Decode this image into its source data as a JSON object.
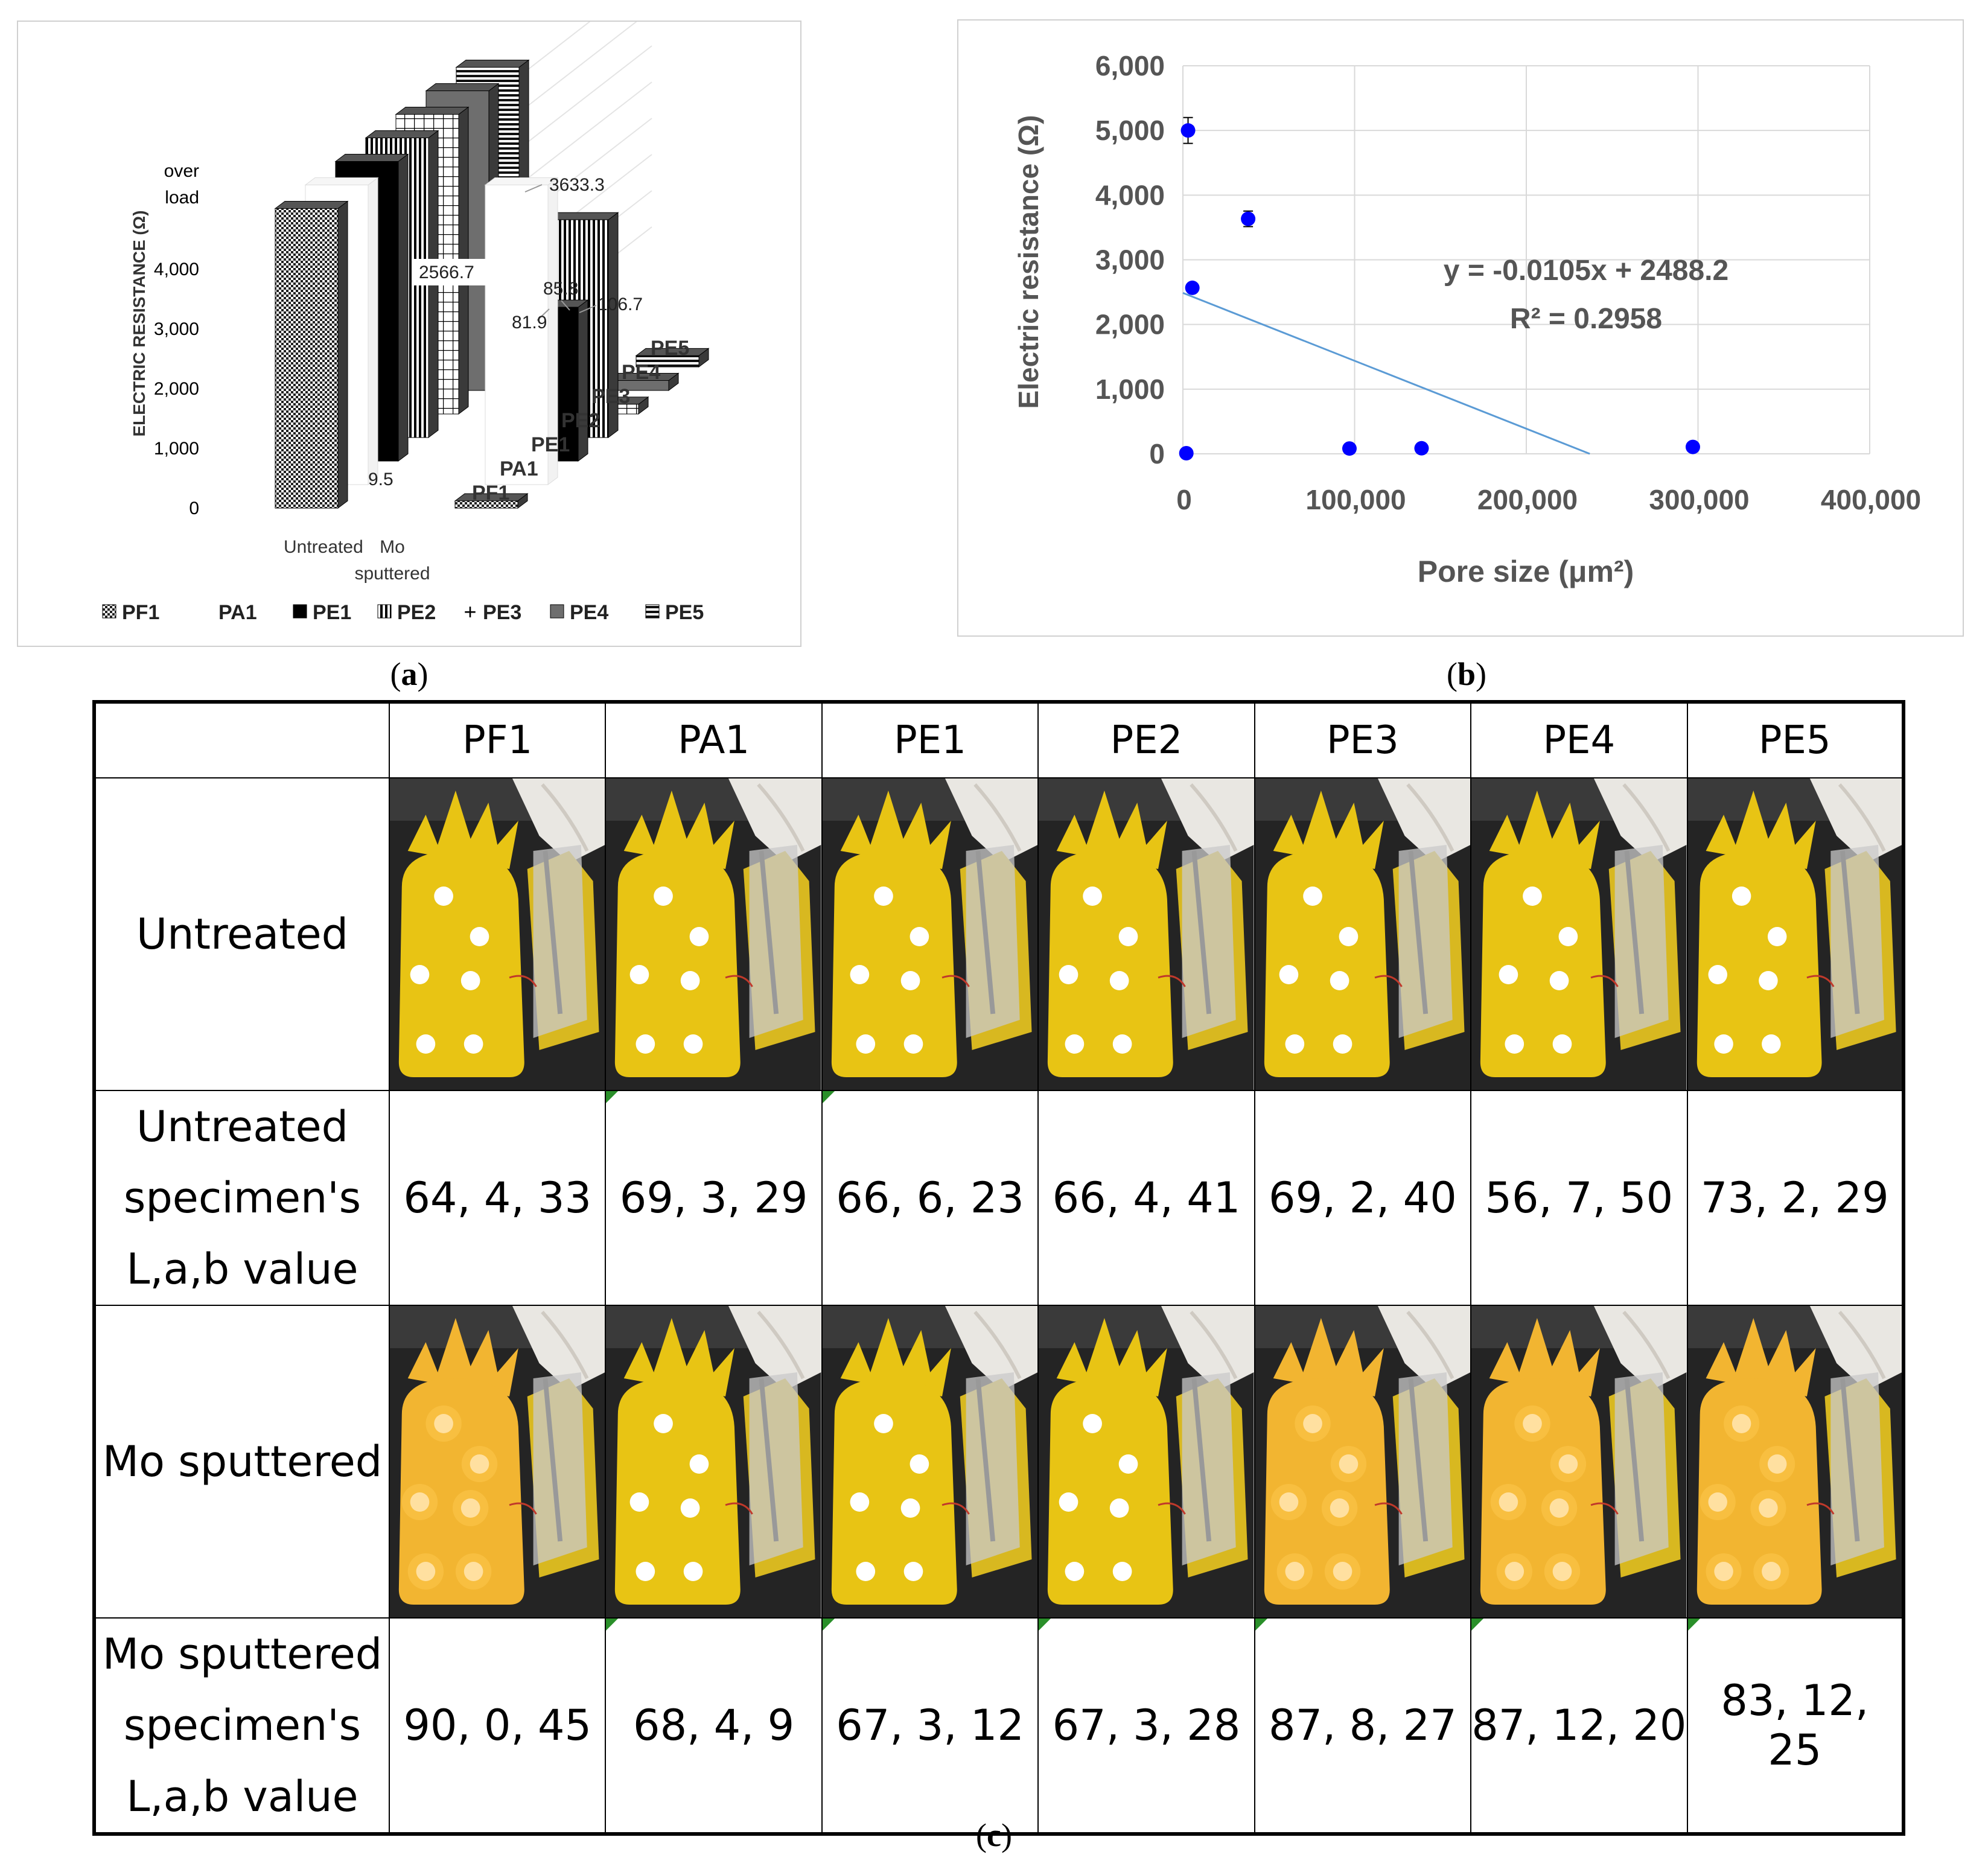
{
  "panel_labels": {
    "a": "(a)",
    "b": "(b)",
    "c": "(c)"
  },
  "chart_data": [
    {
      "type": "bar",
      "title": "",
      "ylabel": "ELECTRIC RESISTANCE (Ω)",
      "ylim": [
        0,
        6000
      ],
      "y_ticks": [
        "0",
        "1,000",
        "2,000",
        "3,000",
        "4,000"
      ],
      "overload_tick": "over load",
      "categories": [
        "Untreated",
        "Mo sputtered"
      ],
      "depth_labels": [
        "PF1",
        "PA1",
        "PE1",
        "PE2",
        "PE3",
        "PE4",
        "PE5"
      ],
      "legend": [
        "PF1",
        "PA1",
        "PE1",
        "PE2",
        "PE3",
        "PE4",
        "PE5"
      ],
      "series": [
        {
          "name": "PF1",
          "pattern": "dots",
          "values": [
            5000,
            9.5
          ]
        },
        {
          "name": "PA1",
          "pattern": "white",
          "values": [
            5000,
            5000
          ]
        },
        {
          "name": "PE1",
          "pattern": "black",
          "values": [
            5000,
            2566.7
          ]
        },
        {
          "name": "PE2",
          "pattern": "vlines",
          "values": [
            5000,
            3633.3
          ]
        },
        {
          "name": "PE3",
          "pattern": "grid",
          "values": [
            5000,
            81.9
          ]
        },
        {
          "name": "PE4",
          "pattern": "gray",
          "values": [
            5000,
            85.8
          ]
        },
        {
          "name": "PE5",
          "pattern": "hlines",
          "values": [
            5000,
            106.7
          ]
        }
      ],
      "data_labels": [
        "over load",
        "9.5",
        "2566.7",
        "3633.3",
        "81.9",
        "85.8",
        "106.7"
      ]
    },
    {
      "type": "scatter",
      "xlabel": "Pore size (μm²)",
      "ylabel": "Electric resistance (Ω)",
      "xlim": [
        0,
        400000
      ],
      "ylim": [
        0,
        6000
      ],
      "x_ticks": [
        "0",
        "100,000",
        "200,000",
        "300,000",
        "400,000"
      ],
      "y_ticks": [
        "0",
        "1,000",
        "2,000",
        "3,000",
        "4,000",
        "5,000",
        "6,000"
      ],
      "x_tick_values": [
        0,
        100000,
        200000,
        300000,
        400000
      ],
      "y_tick_values": [
        0,
        1000,
        2000,
        3000,
        4000,
        5000,
        6000
      ],
      "points": [
        {
          "x": 3000,
          "y": 5000,
          "err": 200
        },
        {
          "x": 38000,
          "y": 3633.3,
          "err": 120
        },
        {
          "x": 5500,
          "y": 2566.7,
          "err": 60
        },
        {
          "x": 2000,
          "y": 9.5,
          "err": 0
        },
        {
          "x": 97000,
          "y": 81.9,
          "err": 0
        },
        {
          "x": 139000,
          "y": 85.8,
          "err": 0
        },
        {
          "x": 297000,
          "y": 106.7,
          "err": 0
        }
      ],
      "trendline": {
        "slope": -0.0105,
        "intercept": 2488.2
      },
      "equation": "y = -0.0105x + 2488.2",
      "r_squared": "R² = 0.2958",
      "point_color": "#0000ff",
      "trend_color": "#5b9bd5"
    },
    {
      "type": "table",
      "columns": [
        "",
        "PF1",
        "PA1",
        "PE1",
        "PE2",
        "PE3",
        "PE4",
        "PE5"
      ],
      "rows": [
        {
          "label_lines": [
            "Untreated"
          ],
          "kind": "photo",
          "lit": [
            false,
            false,
            false,
            false,
            false,
            false,
            false
          ]
        },
        {
          "label_lines": [
            "Untreated",
            "specimen's",
            "L,a,b value"
          ],
          "kind": "values",
          "values": [
            "64, 4, 33",
            "69, 3, 29",
            "66, 6, 23",
            "66, 4, 41",
            "69, 2, 40",
            "56, 7, 50",
            "73, 2, 29"
          ]
        },
        {
          "label_lines": [
            "Mo sputtered"
          ],
          "kind": "photo",
          "lit": [
            true,
            false,
            false,
            false,
            true,
            true,
            true
          ]
        },
        {
          "label_lines": [
            "Mo sputtered",
            "specimen's",
            "L,a,b value"
          ],
          "kind": "values",
          "values": [
            "90, 0, 45",
            "68, 4, 9",
            "67, 3, 12",
            "67, 3, 28",
            "87, 8, 27",
            "87, 12, 20",
            "83, 12, 25"
          ]
        }
      ]
    }
  ]
}
